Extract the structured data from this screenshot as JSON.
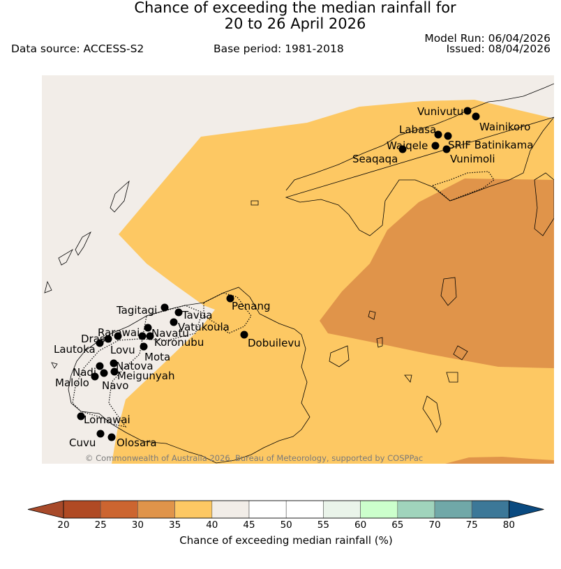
{
  "header": {
    "title_line1": "Chance of exceeding the median rainfall for",
    "title_line2": "20 to 26 April 2026",
    "data_source": "Data source: ACCESS-S2",
    "base_period": "Base period: 1981-2018",
    "model_run": "Model Run: 06/04/2026",
    "issued": "Issued: 08/04/2026"
  },
  "map": {
    "copyright": "© Commonwealth of Australia 2026, Bureau of Meteorology, supported by COSPPac",
    "towns": [
      {
        "name": "Vunivutu"
      },
      {
        "name": "Wainikoro"
      },
      {
        "name": "Labasa"
      },
      {
        "name": "SRIF Batinikama"
      },
      {
        "name": "Waiqele"
      },
      {
        "name": "Seaqaqa"
      },
      {
        "name": "Vunimoli"
      },
      {
        "name": "Penang"
      },
      {
        "name": "Tagitagi"
      },
      {
        "name": "Tavua"
      },
      {
        "name": "Vatukoula"
      },
      {
        "name": "Rarawai"
      },
      {
        "name": "Navatu"
      },
      {
        "name": "Drasa"
      },
      {
        "name": "Koronubu"
      },
      {
        "name": "Lautoka"
      },
      {
        "name": "Lovu"
      },
      {
        "name": "Dobuilevu"
      },
      {
        "name": "Mota"
      },
      {
        "name": "Natova"
      },
      {
        "name": "Nadi"
      },
      {
        "name": "Meigunyah"
      },
      {
        "name": "Malolo"
      },
      {
        "name": "Navo"
      },
      {
        "name": "Lomawai"
      },
      {
        "name": "Cuvu"
      },
      {
        "name": "Olosara"
      }
    ]
  },
  "legend": {
    "label": "Chance of exceeding median rainfall (%)",
    "ticks": [
      "20",
      "25",
      "30",
      "35",
      "40",
      "45",
      "50",
      "55",
      "60",
      "65",
      "70",
      "75",
      "80"
    ],
    "colors": [
      "#a84a2a",
      "#b04a24",
      "#cc6530",
      "#e0944a",
      "#fdc863",
      "#f2ede8",
      "#ffffff",
      "#ffffff",
      "#eaf4ea",
      "#ccffcc",
      "#a0d4bc",
      "#70a8a8",
      "#3c7898",
      "#0a4a80"
    ]
  }
}
